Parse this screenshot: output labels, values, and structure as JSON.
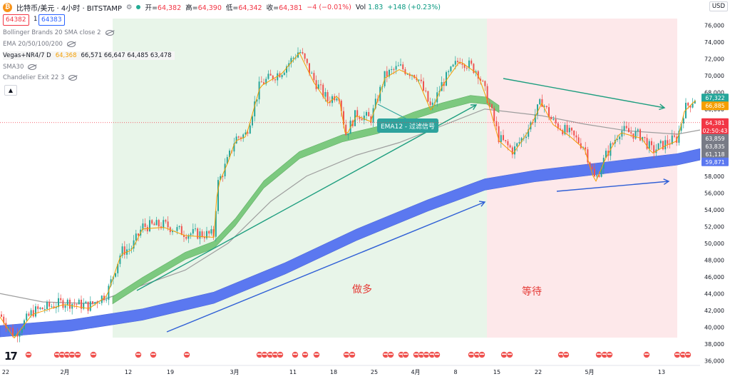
{
  "header": {
    "title": "比特币/美元 · 4小时 · BITSTAMP",
    "open_label": "开=",
    "open": "64,382",
    "high_label": "高=",
    "high": "64,390",
    "low_label": "低=",
    "low": "64,342",
    "close_label": "收=",
    "close": "64,381",
    "change": "−4 (−0.01%)",
    "vol_label": "Vol",
    "vol": "1.83",
    "vol_change": "+148 (+0.23%)"
  },
  "trade": {
    "sell": "64382",
    "qty": "1",
    "buy": "64383"
  },
  "indicators": {
    "bb": "Bollinger Brands 20 SMA close 2",
    "ema": "EMA 20/50/100/200",
    "vegas_name": "Vegas+NR4/7 D",
    "vegas_v1": "64,368",
    "vegas_rest": "66,571  66,647  64,485  63,478",
    "sma": "SMA30",
    "chandelier": "Chandelier Exit 22 3"
  },
  "currency": "USD",
  "logo": "17",
  "colors": {
    "up": "#26a69a",
    "down": "#ef5350",
    "long_zone": "#e8f5e9",
    "wait_zone": "#fde8ea",
    "green_ribbon": "#7cc97f",
    "blue_ribbon": "#5b78f0",
    "ema12_label_bg": "#2ea39d"
  },
  "chart_data": {
    "type": "candlestick",
    "x_axis_labels": [
      "22",
      "2月",
      "12",
      "19",
      "3月",
      "11",
      "18",
      "25",
      "4月",
      "8",
      "15",
      "22",
      "5月",
      "13"
    ],
    "y_ticks": [
      36000,
      38000,
      40000,
      42000,
      44000,
      46000,
      48000,
      50000,
      52000,
      54000,
      56000,
      58000,
      60000,
      62000,
      64000,
      66000,
      68000,
      70000,
      72000,
      74000,
      76000
    ],
    "ylim": [
      35500,
      77500
    ],
    "price_labels": [
      {
        "text": "67,322",
        "value": 67322,
        "color": "#26a69a"
      },
      {
        "text": "66,885",
        "value": 66885,
        "color": "#f59f00"
      },
      {
        "text": "64,381",
        "value": 64381,
        "color": "#f23645"
      },
      {
        "text": "02:50:43",
        "value": 63500,
        "color": "#f23645"
      },
      {
        "text": "63,859",
        "value": 63859,
        "color": "#787b86"
      },
      {
        "text": "63,835",
        "value": 63835,
        "color": "#787b86"
      },
      {
        "text": "61,118",
        "value": 61118,
        "color": "#787b86"
      },
      {
        "text": "59,871",
        "value": 59871,
        "color": "#5b78f0"
      }
    ],
    "close_path": [
      [
        0,
        41500
      ],
      [
        20,
        39000
      ],
      [
        45,
        41800
      ],
      [
        90,
        43000
      ],
      [
        125,
        42500
      ],
      [
        150,
        44000
      ],
      [
        170,
        49000
      ],
      [
        185,
        49500
      ],
      [
        200,
        52000
      ],
      [
        230,
        52200
      ],
      [
        260,
        51200
      ],
      [
        300,
        51000
      ],
      [
        305,
        57000
      ],
      [
        320,
        60000
      ],
      [
        330,
        62500
      ],
      [
        345,
        63000
      ],
      [
        365,
        69000
      ],
      [
        395,
        70500
      ],
      [
        420,
        73000
      ],
      [
        440,
        69500
      ],
      [
        460,
        67000
      ],
      [
        475,
        68000
      ],
      [
        485,
        63000
      ],
      [
        500,
        65500
      ],
      [
        520,
        64800
      ],
      [
        540,
        70000
      ],
      [
        560,
        71000
      ],
      [
        585,
        70000
      ],
      [
        605,
        66000
      ],
      [
        620,
        69000
      ],
      [
        645,
        72000
      ],
      [
        670,
        70500
      ],
      [
        685,
        67000
      ],
      [
        700,
        62500
      ],
      [
        720,
        61000
      ],
      [
        740,
        63500
      ],
      [
        760,
        67000
      ],
      [
        775,
        64500
      ],
      [
        800,
        63000
      ],
      [
        820,
        61500
      ],
      [
        835,
        57500
      ],
      [
        850,
        60500
      ],
      [
        870,
        63500
      ],
      [
        900,
        62800
      ],
      [
        915,
        61000
      ],
      [
        935,
        62000
      ],
      [
        950,
        62500
      ],
      [
        960,
        66000
      ],
      [
        975,
        67300
      ]
    ],
    "annotations": {
      "long_label": "做多",
      "wait_label": "等待",
      "ema_label": "EMA12  - 过滤信号"
    }
  }
}
